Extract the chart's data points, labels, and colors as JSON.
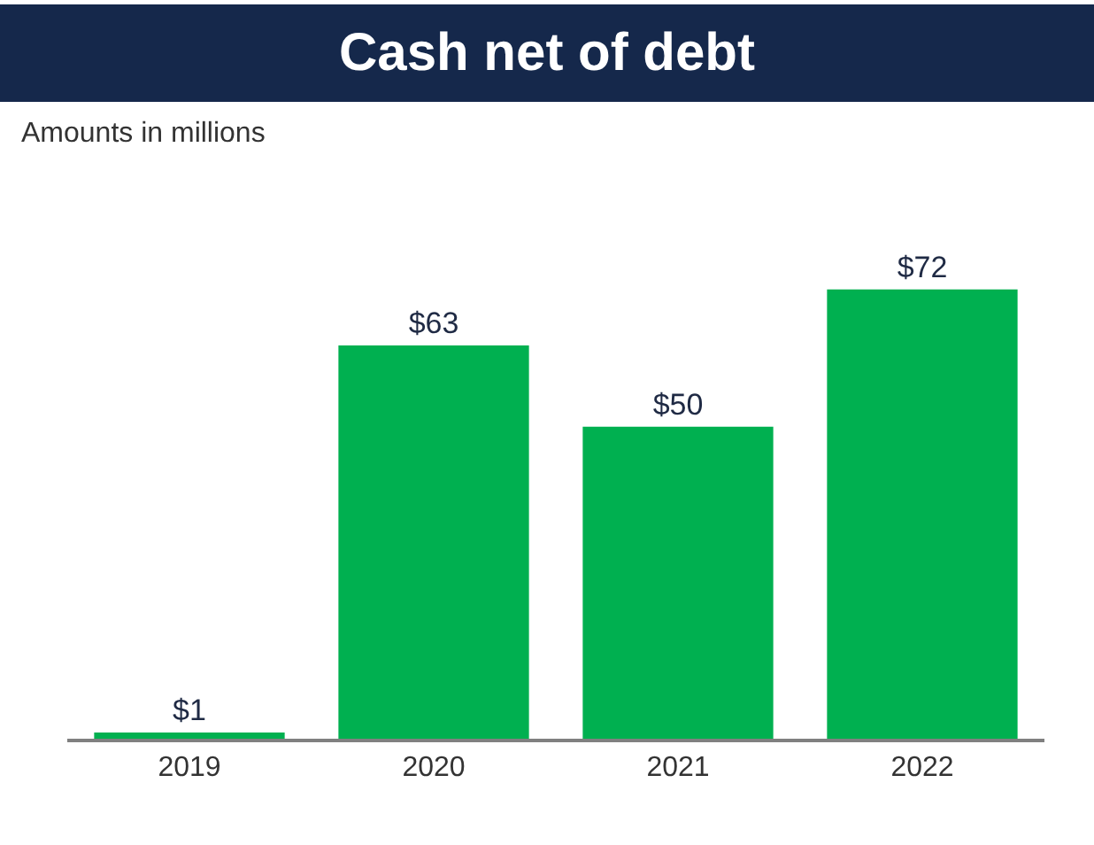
{
  "chart_data": {
    "type": "bar",
    "title": "Cash net of debt",
    "subtitle": "Amounts in millions",
    "categories": [
      "2019",
      "2020",
      "2021",
      "2022"
    ],
    "values": [
      1,
      63,
      50,
      72
    ],
    "value_labels": [
      "$1",
      "$63",
      "$50",
      "$72"
    ],
    "color": "#00b050"
  }
}
